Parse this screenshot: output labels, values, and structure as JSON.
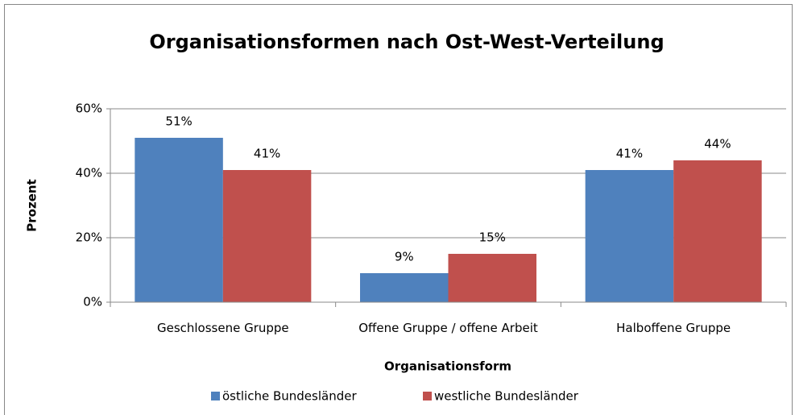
{
  "chart_data": {
    "type": "bar",
    "title": "Organisationsformen nach Ost-West-Verteilung",
    "xlabel": "Organisationsform",
    "ylabel": "Prozent",
    "categories": [
      "Geschlossene Gruppe",
      "Offene Gruppe / offene Arbeit",
      "Halboffene Gruppe"
    ],
    "series": [
      {
        "name": "östliche Bundesländer",
        "color": "#4f81bd",
        "values": [
          51,
          9,
          41
        ],
        "value_labels": [
          "51%",
          "9%",
          "41%"
        ]
      },
      {
        "name": "westliche Bundesländer",
        "color": "#c0504d",
        "values": [
          41,
          15,
          44
        ],
        "value_labels": [
          "41%",
          "15%",
          "44%"
        ]
      }
    ],
    "ylim": [
      0,
      60
    ],
    "yticks": [
      {
        "value": 0,
        "label": "0%"
      },
      {
        "value": 20,
        "label": "20%"
      },
      {
        "value": 40,
        "label": "40%"
      },
      {
        "value": 60,
        "label": "60%"
      }
    ],
    "grid": true,
    "legend": "bottom"
  }
}
